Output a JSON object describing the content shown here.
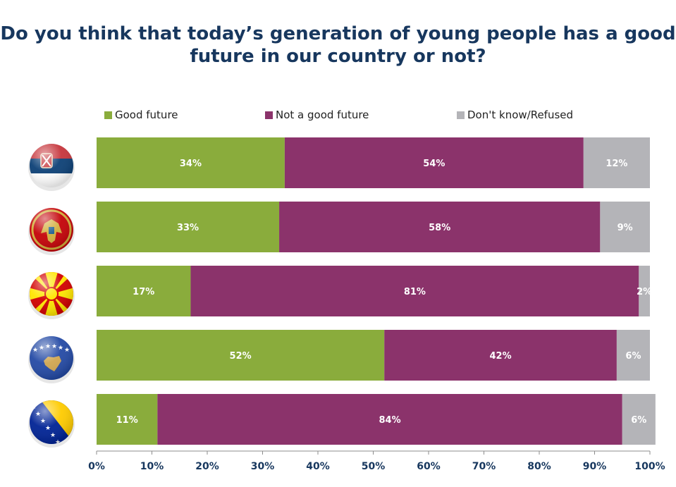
{
  "chart_data": {
    "type": "bar",
    "orientation": "horizontal",
    "stacked": true,
    "title": [
      "Do you think that today’s generation of young people has a good",
      "future in our country or not?"
    ],
    "xlabel": "",
    "ylabel": "",
    "xlim": [
      0,
      100
    ],
    "x_ticks": [
      "0%",
      "10%",
      "20%",
      "30%",
      "40%",
      "50%",
      "60%",
      "70%",
      "80%",
      "90%",
      "100%"
    ],
    "categories": [
      "serbia-flag",
      "montenegro-flag",
      "north-macedonia-flag",
      "kosovo-flag",
      "bosnia-herzegovina-flag"
    ],
    "series": [
      {
        "name": "Good future",
        "color": "#8aac3c",
        "values": [
          34,
          33,
          17,
          52,
          11
        ],
        "labels": [
          "34%",
          "33%",
          "17%",
          "52%",
          "11%"
        ]
      },
      {
        "name": "Not a good future",
        "color": "#8b336b",
        "values": [
          54,
          58,
          81,
          42,
          84
        ],
        "labels": [
          "54%",
          "58%",
          "81%",
          "42%",
          "84%"
        ]
      },
      {
        "name": "Don't know/Refused",
        "color": "#b4b4b8",
        "values": [
          12,
          9,
          2,
          6,
          6
        ],
        "labels": [
          "12%",
          "9%",
          "2%",
          "6%",
          "6%"
        ]
      }
    ],
    "legend_position": "top",
    "grid": false
  }
}
